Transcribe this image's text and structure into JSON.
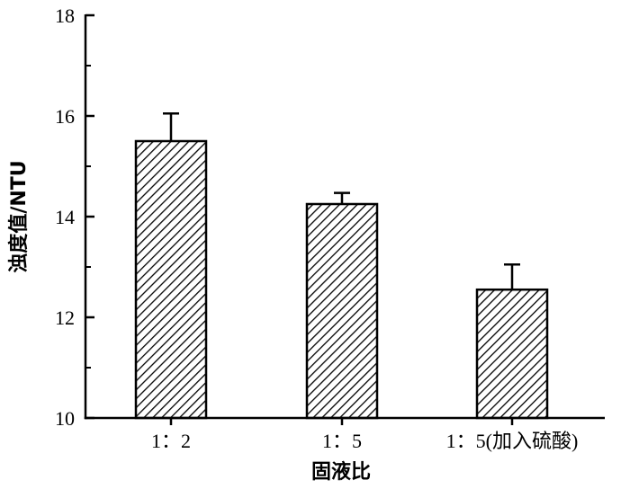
{
  "chart_data": {
    "type": "bar",
    "categories": [
      "1：2",
      "1：5",
      "1：5(加入硫酸)"
    ],
    "values": [
      15.5,
      14.25,
      12.55
    ],
    "errors": [
      0.55,
      0.22,
      0.5
    ],
    "xlabel": "固液比",
    "ylabel": "浊度值/NTU",
    "ylim": [
      10,
      18
    ],
    "yticks": [
      "10",
      "12",
      "14",
      "16",
      "18"
    ],
    "bar_fill": "diagonal-hatch",
    "bar_color": "#000000",
    "grid": false,
    "legend": "none"
  }
}
